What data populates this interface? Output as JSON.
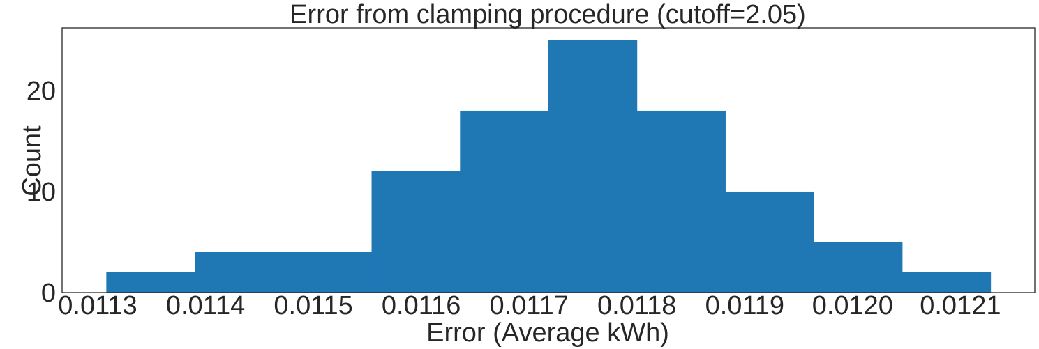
{
  "chart_data": {
    "type": "bar",
    "title": "Error from clamping procedure (cutoff=2.05)",
    "xlabel": "Error (Average kWh)",
    "ylabel": "Count",
    "bins": [
      {
        "x0": 0.011308,
        "x1": 0.01139,
        "count": 2
      },
      {
        "x0": 0.01139,
        "x1": 0.011472,
        "count": 4
      },
      {
        "x0": 0.011472,
        "x1": 0.011554,
        "count": 4
      },
      {
        "x0": 0.011554,
        "x1": 0.011636,
        "count": 12
      },
      {
        "x0": 0.011636,
        "x1": 0.011718,
        "count": 18
      },
      {
        "x0": 0.011718,
        "x1": 0.0118,
        "count": 25
      },
      {
        "x0": 0.0118,
        "x1": 0.011882,
        "count": 18
      },
      {
        "x0": 0.011882,
        "x1": 0.011964,
        "count": 10
      },
      {
        "x0": 0.011964,
        "x1": 0.012046,
        "count": 5
      },
      {
        "x0": 0.012046,
        "x1": 0.012128,
        "count": 2
      }
    ],
    "xlim": [
      0.011267,
      0.012169
    ],
    "ylim": [
      0,
      26.2
    ],
    "xticks": [
      0.0113,
      0.0114,
      0.0115,
      0.0116,
      0.0117,
      0.0118,
      0.0119,
      0.012,
      0.0121
    ],
    "xtick_labels": [
      "0.0113",
      "0.0114",
      "0.0115",
      "0.0116",
      "0.0117",
      "0.0118",
      "0.0119",
      "0.0120",
      "0.0121"
    ],
    "yticks": [
      0,
      10,
      20
    ],
    "ytick_labels": [
      "0",
      "10",
      "20"
    ],
    "bar_color": "#1f77b4",
    "grid": false,
    "legend": "none"
  }
}
